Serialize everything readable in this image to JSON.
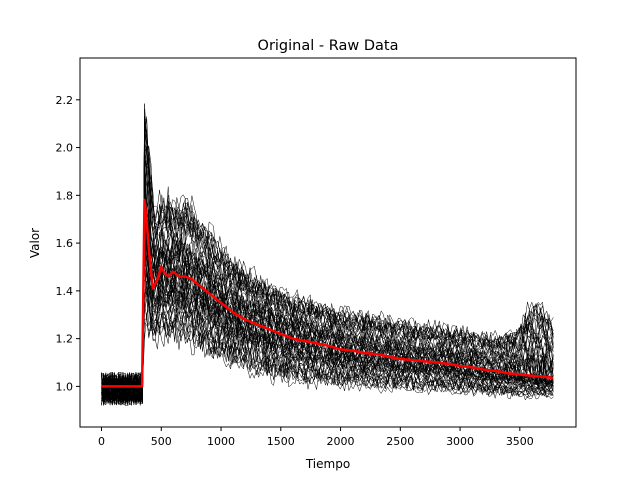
{
  "chart_data": {
    "type": "line",
    "title": "Original - Raw Data",
    "xlabel": "Tiempo",
    "ylabel": "Valor",
    "xlim": [
      -180,
      3970
    ],
    "ylim": [
      0.83,
      2.375
    ],
    "xticks": [
      0,
      500,
      1000,
      1500,
      2000,
      2500,
      3000,
      3500
    ],
    "yticks": [
      1.0,
      1.2,
      1.4,
      1.6,
      1.8,
      2.0,
      2.2
    ],
    "grid": false,
    "legend": "none",
    "raw_traces": {
      "color": "#000000",
      "count": 60,
      "x_range": [
        0,
        3780
      ],
      "baseline_range": [
        0.92,
        1.06
      ],
      "upper_envelope": {
        "x": [
          0,
          340,
          360,
          380,
          450,
          500,
          600,
          700,
          800,
          1000,
          1200,
          1500,
          2000,
          2500,
          3000,
          3300,
          3500,
          3600,
          3700,
          3780
        ],
        "y": [
          1.06,
          1.06,
          2.33,
          2.25,
          1.8,
          1.9,
          1.85,
          1.87,
          1.8,
          1.65,
          1.55,
          1.45,
          1.37,
          1.32,
          1.28,
          1.25,
          1.3,
          1.45,
          1.4,
          1.33
        ]
      },
      "lower_envelope": {
        "x": [
          0,
          340,
          360,
          400,
          500,
          700,
          1000,
          1500,
          2000,
          2500,
          3000,
          3500,
          3780
        ],
        "y": [
          0.92,
          0.92,
          1.0,
          1.1,
          1.12,
          1.1,
          1.03,
          0.97,
          0.95,
          0.95,
          0.94,
          0.93,
          0.93
        ]
      }
    },
    "series": [
      {
        "color": "#ff0000",
        "x": [
          0,
          100,
          200,
          300,
          340,
          360,
          380,
          400,
          430,
          470,
          500,
          520,
          560,
          600,
          650,
          700,
          750,
          800,
          900,
          1000,
          1100,
          1200,
          1300,
          1400,
          1500,
          1600,
          1700,
          1800,
          1900,
          2000,
          2100,
          2200,
          2300,
          2400,
          2500,
          2600,
          2700,
          2800,
          2900,
          3000,
          3100,
          3200,
          3300,
          3400,
          3500,
          3600,
          3700,
          3780
        ],
        "y": [
          1.0,
          1.0,
          1.0,
          1.0,
          1.0,
          1.78,
          1.68,
          1.55,
          1.41,
          1.45,
          1.5,
          1.48,
          1.46,
          1.48,
          1.46,
          1.46,
          1.45,
          1.43,
          1.39,
          1.35,
          1.31,
          1.28,
          1.26,
          1.24,
          1.22,
          1.2,
          1.19,
          1.18,
          1.17,
          1.155,
          1.15,
          1.14,
          1.135,
          1.125,
          1.115,
          1.11,
          1.105,
          1.1,
          1.095,
          1.085,
          1.08,
          1.07,
          1.065,
          1.055,
          1.05,
          1.045,
          1.04,
          1.035
        ]
      }
    ]
  }
}
